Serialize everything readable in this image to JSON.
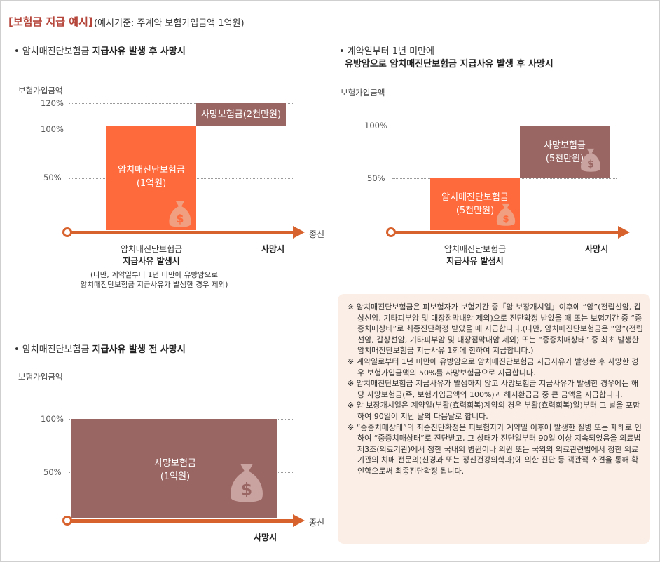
{
  "header": {
    "title": "[보험금 지급 예시]",
    "subtitle": "(예시기준: 주계약 보험가입금액 1억원)"
  },
  "chart_data": [
    {
      "type": "bar",
      "bullet_prefix": "• 암치매진단보험금 ",
      "bullet_bold": "지급사유 발생 후 사망시",
      "ylabel": "보험가입금액",
      "y_ticks": [
        "120%",
        "100%",
        "50%"
      ],
      "axis_end_label": "종신",
      "bars": [
        {
          "label_lines": [
            "암치매진단보험금",
            "(1억원)"
          ],
          "from": 0,
          "to": 100,
          "color": "#ff6a3d"
        },
        {
          "label_lines": [
            "사망보험금(2천만원)"
          ],
          "from": 100,
          "to": 120,
          "color": "#9a6663"
        }
      ],
      "x_labels": {
        "event_line1": "암치매진단보험금",
        "event_line2": "지급사유 발생시",
        "death": "사망시"
      },
      "footnote_lines": [
        "(다만, 계약일부터 1년 미만에 유방암으로",
        "암치매진단보험금 지급사유가 발생한 경우 제외)"
      ]
    },
    {
      "type": "bar",
      "bullet_line1": "• 계약일부터 1년 미만에",
      "bullet_line2": "유방암으로 암치매진단보험금 지급사유 발생 후 사망시",
      "ylabel": "보험가입금액",
      "y_ticks": [
        "100%",
        "50%"
      ],
      "bars": [
        {
          "label_lines": [
            "암치매진단보험금",
            "(5천만원)"
          ],
          "from": 0,
          "to": 50,
          "color": "#ff6a3d"
        },
        {
          "label_lines": [
            "사망보험금",
            "(5천만원)"
          ],
          "from": 50,
          "to": 100,
          "color": "#9a6663"
        }
      ],
      "x_labels": {
        "event_line1": "암치매진단보험금",
        "event_line2": "지급사유 발생시",
        "death": "사망시"
      }
    },
    {
      "type": "bar",
      "bullet_prefix": "• 암치매진단보험금 ",
      "bullet_bold": "지급사유 발생 전 사망시",
      "ylabel": "보험가입금액",
      "y_ticks": [
        "100%",
        "50%"
      ],
      "axis_end_label": "종신",
      "bars": [
        {
          "label_lines": [
            "사망보험금",
            "(1억원)"
          ],
          "from": 0,
          "to": 100,
          "color": "#9a6663"
        }
      ],
      "x_labels": {
        "death": "사망시"
      }
    }
  ],
  "notes": [
    "※ 암치매진단보험금은 피보험자가 보험기간 중「암 보장개시일」이후에 “암”(전립선암, 갑상선암, 기타피부암 및 대장점막내암 제외)으로 진단확정 받았을 때 또는 보험기간 중 “중증치매상태”로 최종진단확정 받았을 때 지급합니다.(다만, 암치매진단보험금은 “암”(전립선암, 갑상선암, 기타피부암 및 대장점막내암 제외) 또는 “중증치매상태” 중 최초 발생한 암치매진단보험금 지급사유 1회에 한하여 지급합니다.)",
    "※ 계약일로부터 1년 미만에 유방암으로 암치매진단보험금 지급사유가 발생한 후 사망한 경우 보험가입금액의 50%를 사망보험금으로 지급합니다.",
    "※ 암치매진단보험금 지급사유가 발생하지 않고 사망보험금 지급사유가 발생한 경우에는 해당 사망보험금(즉, 보험가입금액의 100%)과 해지환급금 중 큰 금액을 지급합니다.",
    "※ 암 보장개시일은 계약일(부활(효력회복)계약의 경우 부활(효력회복)일)부터 그 날을 포함하여 90일이 지난 날의 다음날로 합니다.",
    "※ “중증치매상태”의 최종진단확정은 피보험자가 계약일 이후에 발생한 질병 또는 재해로 인하여 “중증치매상태”로 진단받고, 그 상태가 진단일부터 90일 이상 지속되었음을 의료법 제3조(의료기관)에서 정한 국내의 병원이나 의원 또는 국외의 의료관련법에서 정한 의료기관의 치매 전문의(신경과 또는 정신건강의학과)에 의한 진단 등 객관적 소견을 통해 확인함으로써 최종진단확정 됩니다."
  ]
}
